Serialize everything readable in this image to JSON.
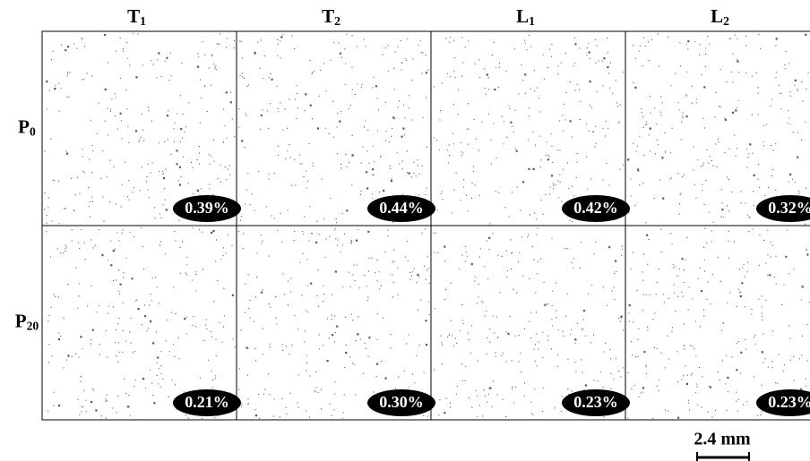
{
  "columns": [
    {
      "main": "T",
      "sub": "1"
    },
    {
      "main": "T",
      "sub": "2"
    },
    {
      "main": "L",
      "sub": "1"
    },
    {
      "main": "L",
      "sub": "2"
    }
  ],
  "rows": [
    {
      "main": "P",
      "sub": "0"
    },
    {
      "main": "P",
      "sub": "20"
    }
  ],
  "cells": [
    [
      "0.39%",
      "0.44%",
      "0.42%",
      "0.32%"
    ],
    [
      "0.21%",
      "0.30%",
      "0.23%",
      "0.23%"
    ]
  ],
  "scale_bar": "2.4 mm"
}
